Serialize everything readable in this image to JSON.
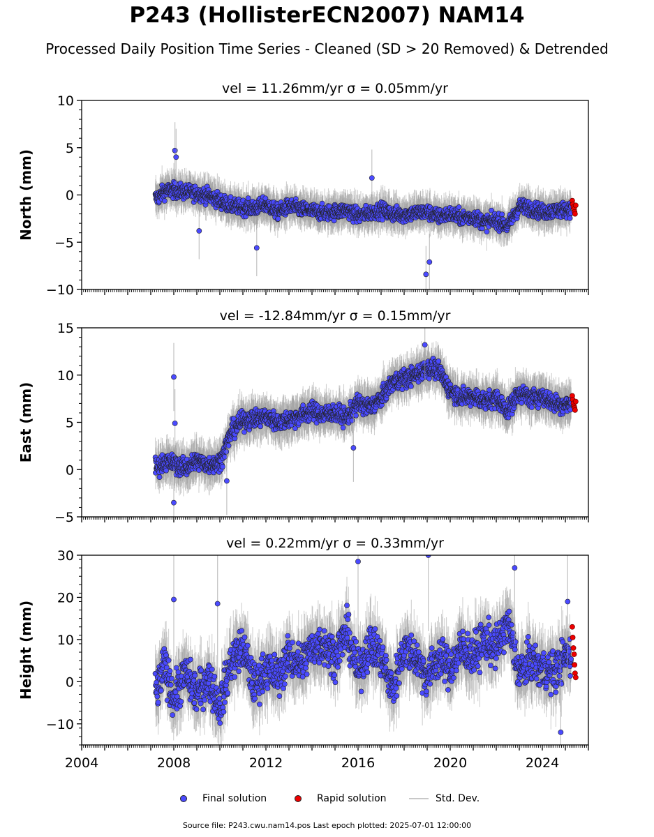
{
  "title": "P243 (HollisterECN2007) NAM14",
  "subtitle": "Processed Daily Position Time Series - Cleaned (SD > 20 Removed) & Detrended",
  "legend": {
    "final": "Final solution",
    "rapid": "Rapid solution",
    "std": "Std. Dev."
  },
  "footer": "Source file: P243.cwu.nam14.pos  Last epoch plotted: 2025-07-01 12:00:00",
  "colors": {
    "final": "#4a4aff",
    "rapid": "#ee0000",
    "std": "#9a9a9a",
    "edge": "#222222"
  },
  "chart_data": [
    {
      "type": "scatter",
      "title": "vel = 11.26mm/yr   σ = 0.05mm/yr",
      "ylabel": "North (mm)",
      "xlim": [
        2004,
        2026
      ],
      "ylim": [
        -10,
        10
      ],
      "yticks": [
        -10,
        -5,
        0,
        5,
        10
      ],
      "xticks": [
        2004,
        2008,
        2012,
        2016,
        2020,
        2024
      ],
      "xtick_labels_visible": false,
      "series": [
        {
          "role": "final",
          "x": [
            2007.3,
            2007.6,
            2008.0,
            2008.5,
            2009.0,
            2009.5,
            2010.0,
            2010.5,
            2011.0,
            2011.5,
            2012.0,
            2012.5,
            2013.0,
            2013.5,
            2014.0,
            2014.5,
            2015.0,
            2015.5,
            2016.0,
            2016.5,
            2017.0,
            2017.5,
            2018.0,
            2018.5,
            2019.0,
            2019.5,
            2020.0,
            2020.5,
            2021.0,
            2021.5,
            2022.0,
            2022.5,
            2023.0,
            2023.5,
            2024.0,
            2024.5,
            2025.0
          ],
          "y": [
            -0.3,
            0.4,
            0.5,
            0.3,
            0.2,
            -0.1,
            -0.6,
            -1.2,
            -1.3,
            -1.4,
            -1.0,
            -1.8,
            -1.2,
            -1.5,
            -1.7,
            -1.9,
            -1.8,
            -1.6,
            -2.2,
            -1.9,
            -1.6,
            -2.0,
            -2.1,
            -1.9,
            -1.8,
            -2.3,
            -2.0,
            -2.4,
            -2.3,
            -2.9,
            -2.7,
            -3.3,
            -1.2,
            -1.4,
            -1.8,
            -1.7,
            -1.5
          ],
          "spread": 1.0
        },
        {
          "role": "final-outliers",
          "x": [
            2008.05,
            2008.1,
            2009.1,
            2011.6,
            2016.6,
            2018.95,
            2019.1
          ],
          "y": [
            4.7,
            4.0,
            -3.8,
            -5.6,
            1.8,
            -8.4,
            -7.1
          ]
        },
        {
          "role": "rapid",
          "x": [
            2025.3,
            2025.32,
            2025.35,
            2025.38,
            2025.4,
            2025.42,
            2025.45
          ],
          "y": [
            -0.6,
            -1.0,
            -1.3,
            -1.5,
            -1.8,
            -2.0,
            -1.1
          ]
        }
      ]
    },
    {
      "type": "scatter",
      "title": "vel = -12.84mm/yr   σ = 0.15mm/yr",
      "ylabel": "East (mm)",
      "xlim": [
        2004,
        2026
      ],
      "ylim": [
        -5,
        15
      ],
      "yticks": [
        -5,
        0,
        5,
        10,
        15
      ],
      "xticks": [
        2004,
        2008,
        2012,
        2016,
        2020,
        2024
      ],
      "xtick_labels_visible": false,
      "series": [
        {
          "role": "final",
          "x": [
            2007.3,
            2007.6,
            2008.0,
            2008.5,
            2009.0,
            2009.5,
            2010.0,
            2010.5,
            2011.0,
            2011.5,
            2012.0,
            2012.5,
            2013.0,
            2013.5,
            2014.0,
            2014.5,
            2015.0,
            2015.5,
            2016.0,
            2016.5,
            2017.0,
            2017.5,
            2018.0,
            2018.5,
            2019.0,
            2019.5,
            2020.0,
            2020.5,
            2021.0,
            2021.5,
            2022.0,
            2022.5,
            2023.0,
            2023.5,
            2024.0,
            2024.5,
            2025.0
          ],
          "y": [
            0.3,
            0.8,
            0.6,
            0.2,
            0.9,
            0.5,
            0.8,
            4.0,
            5.2,
            5.4,
            5.6,
            5.0,
            5.3,
            5.7,
            6.2,
            5.8,
            6.0,
            5.5,
            7.0,
            6.6,
            7.5,
            9.3,
            9.6,
            10.0,
            10.8,
            10.5,
            8.4,
            7.6,
            7.8,
            7.2,
            7.6,
            6.2,
            8.2,
            7.5,
            7.8,
            7.0,
            6.9
          ],
          "spread": 1.2
        },
        {
          "role": "final-outliers",
          "x": [
            2008.0,
            2008.05,
            2008.0,
            2010.3,
            2015.8,
            2018.9
          ],
          "y": [
            9.8,
            4.9,
            -3.5,
            -1.2,
            2.3,
            13.2
          ]
        },
        {
          "role": "rapid",
          "x": [
            2025.3,
            2025.32,
            2025.35,
            2025.38,
            2025.4,
            2025.42,
            2025.45
          ],
          "y": [
            7.8,
            7.4,
            7.0,
            6.7,
            6.5,
            6.3,
            7.2
          ]
        }
      ]
    },
    {
      "type": "scatter",
      "title": "vel = 0.22mm/yr   σ = 0.33mm/yr",
      "ylabel": "Height (mm)",
      "xlim": [
        2004,
        2026
      ],
      "ylim": [
        -15,
        30
      ],
      "yticks": [
        -10,
        0,
        10,
        20,
        30
      ],
      "xticks": [
        2004,
        2008,
        2012,
        2016,
        2020,
        2024
      ],
      "xtick_labels_visible": true,
      "series": [
        {
          "role": "final",
          "x": [
            2007.3,
            2007.6,
            2008.0,
            2008.5,
            2009.0,
            2009.5,
            2010.0,
            2010.5,
            2011.0,
            2011.5,
            2012.0,
            2012.5,
            2013.0,
            2013.5,
            2014.0,
            2014.5,
            2015.0,
            2015.5,
            2016.0,
            2016.5,
            2017.0,
            2017.5,
            2018.0,
            2018.5,
            2019.0,
            2019.5,
            2020.0,
            2020.5,
            2021.0,
            2021.5,
            2022.0,
            2022.5,
            2023.0,
            2023.5,
            2024.0,
            2024.5,
            2025.0
          ],
          "y": [
            -2,
            4,
            -4,
            2,
            -3,
            1,
            -6,
            5,
            8,
            -1,
            3,
            1,
            6,
            4,
            8,
            9,
            6,
            12,
            2,
            9,
            6,
            -2,
            8,
            6,
            1,
            6,
            3,
            8,
            6,
            10,
            8,
            14,
            2,
            5,
            3,
            2,
            6
          ],
          "spread": 6.0
        },
        {
          "role": "final-outliers",
          "x": [
            2008.0,
            2009.9,
            2016.0,
            2019.05,
            2022.8,
            2024.8,
            2025.1
          ],
          "y": [
            19.5,
            18.5,
            28.5,
            30.0,
            27.0,
            -12.0,
            19.0
          ]
        },
        {
          "role": "rapid",
          "x": [
            2025.3,
            2025.32,
            2025.35,
            2025.38,
            2025.4,
            2025.42,
            2025.45
          ],
          "y": [
            13.0,
            10.5,
            8.0,
            6.5,
            4.0,
            2.0,
            1.0
          ]
        }
      ]
    }
  ]
}
